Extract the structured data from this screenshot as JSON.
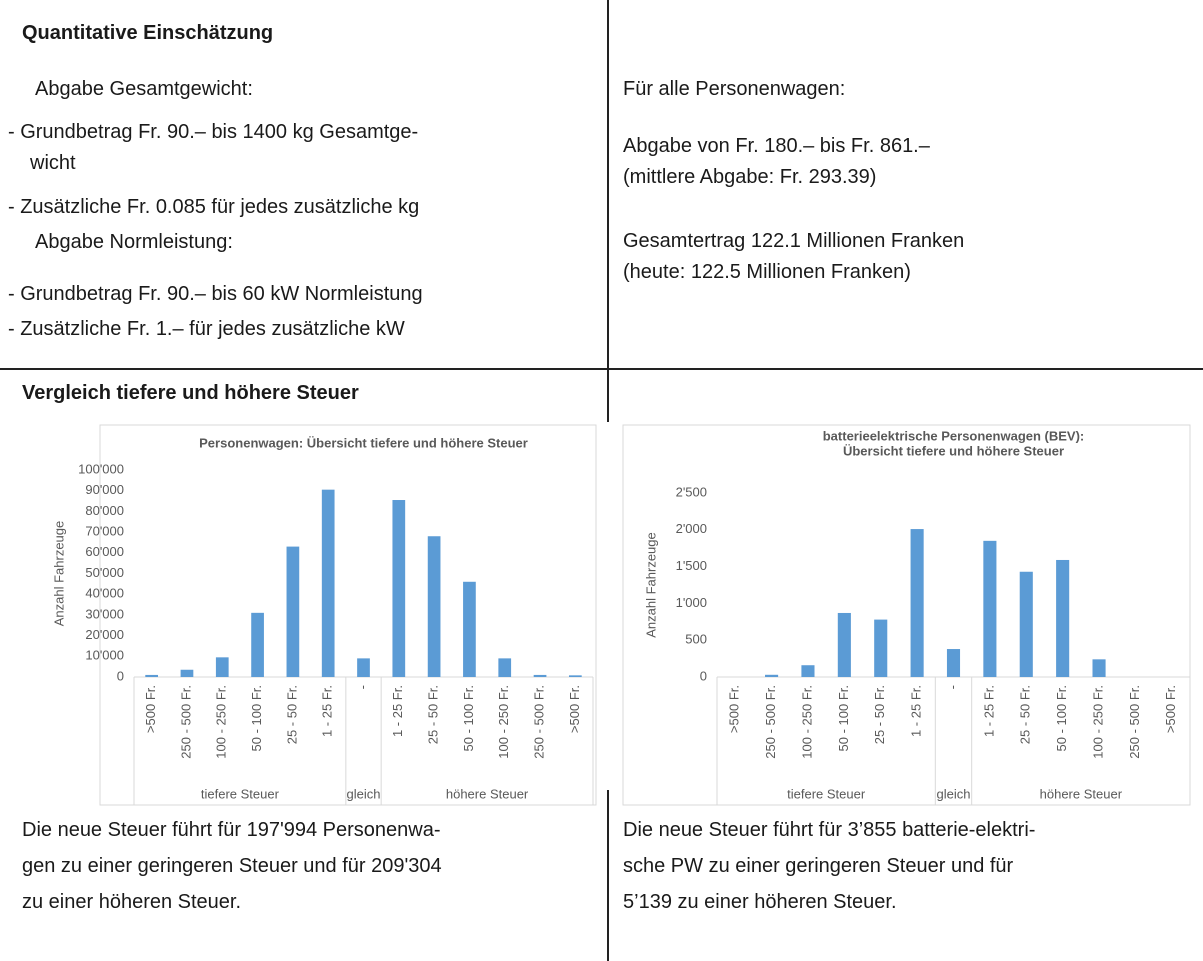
{
  "section1": {
    "heading": "Quantitative Einschätzung",
    "left": {
      "subheading1": "Abgabe Gesamtgewicht:",
      "items1": [
        [
          "- Grundbetrag Fr. 90.– bis 1400 kg Gesamtge-",
          "wicht"
        ],
        [
          "- Zusätzliche Fr. 0.085 für jedes zusätzliche kg"
        ]
      ],
      "subheading2": "Abgabe Normleistung:",
      "items2": [
        [
          "- Grundbetrag Fr. 90.– bis 60 kW Normleistung"
        ],
        [
          "- Zusätzliche Fr. 1.– für jedes zusätzliche kW"
        ]
      ]
    },
    "right": {
      "intro": "Für alle Personenwagen:",
      "paragraphs": [
        [
          "Abgabe von Fr. 180.– bis Fr. 861.–",
          "(mittlere Abgabe: Fr. 293.39)"
        ],
        [
          "Gesamtertrag 122.1 Millionen Franken",
          "(heute: 122.5 Millionen Franken)"
        ]
      ]
    }
  },
  "section2": {
    "heading": "Vergleich tiefere und höhere Steuer",
    "captions": [
      [
        "Die neue Steuer führt für 197'994 Personenwa-",
        "gen zu einer geringeren Steuer und für 209'304",
        "zu einer höheren Steuer."
      ],
      [
        "Die neue Steuer führt für 3’855 batterie-elektri-",
        "sche PW zu einer geringeren Steuer und für",
        "5’139 zu einer höheren Steuer."
      ]
    ]
  },
  "chart_data": [
    {
      "type": "bar",
      "title": [
        "Personenwagen: Übersicht tiefere und höhere Steuer"
      ],
      "y_label": "Anzahl Fahrzeuge",
      "categories": [
        ">500 Fr.",
        "250 - 500 Fr.",
        "100 - 250 Fr.",
        "50 - 100 Fr.",
        "25 - 50 Fr.",
        "1 - 25 Fr.",
        "-",
        "1 - 25 Fr.",
        "25 - 50 Fr.",
        "50 - 100 Fr.",
        "100 - 250 Fr.",
        "250 - 500 Fr.",
        ">500 Fr."
      ],
      "groups": [
        {
          "name": "tiefere Steuer",
          "span": 6
        },
        {
          "name": "gleich",
          "span": 1
        },
        {
          "name": "höhere Steuer",
          "span": 6
        }
      ],
      "values": [
        1000,
        3500,
        9500,
        31000,
        63000,
        90500,
        9000,
        85500,
        68000,
        46000,
        9000,
        1000,
        800
      ],
      "color": "#5b9bd5",
      "ylim": [
        0,
        100000
      ],
      "yticks": [
        0,
        {
          "value": 10000,
          "label": "10'000"
        },
        {
          "value": 20000,
          "label": "20'000"
        },
        {
          "value": 30000,
          "label": "30'000"
        },
        {
          "value": 40000,
          "label": "40'000"
        },
        {
          "value": 50000,
          "label": "50'000"
        },
        {
          "value": 60000,
          "label": "60'000"
        },
        {
          "value": 70000,
          "label": "70'000"
        },
        {
          "value": 80000,
          "label": "80'000"
        },
        {
          "value": 90000,
          "label": "90'000"
        },
        {
          "value": 100000,
          "label": "100'000"
        }
      ],
      "grid": false
    },
    {
      "type": "bar",
      "title": [
        "batterieelektrische Personenwagen (BEV):",
        "Übersicht tiefere und höhere Steuer"
      ],
      "y_label": "Anzahl Fahrzeuge",
      "categories": [
        ">500 Fr.",
        "250 - 500 Fr.",
        "100 - 250 Fr.",
        "50 - 100 Fr.",
        "25 - 50 Fr.",
        "1 - 25 Fr.",
        "-",
        "1 - 25 Fr.",
        "25 - 50 Fr.",
        "50 - 100 Fr.",
        "100 - 250 Fr.",
        "250 - 500 Fr.",
        ">500 Fr."
      ],
      "groups": [
        {
          "name": "tiefere Steuer",
          "span": 6
        },
        {
          "name": "gleich",
          "span": 1
        },
        {
          "name": "höhere Steuer",
          "span": 6
        }
      ],
      "values": [
        0,
        30,
        160,
        870,
        780,
        2010,
        380,
        1850,
        1430,
        1590,
        240,
        0,
        0
      ],
      "color": "#5b9bd5",
      "ylim": [
        0,
        2500
      ],
      "yticks": [
        0,
        500,
        {
          "value": 1000,
          "label": "1'000"
        },
        {
          "value": 1500,
          "label": "1'500"
        },
        {
          "value": 2000,
          "label": "2'000"
        },
        {
          "value": 2500,
          "label": "2'500"
        }
      ],
      "grid": false
    }
  ]
}
